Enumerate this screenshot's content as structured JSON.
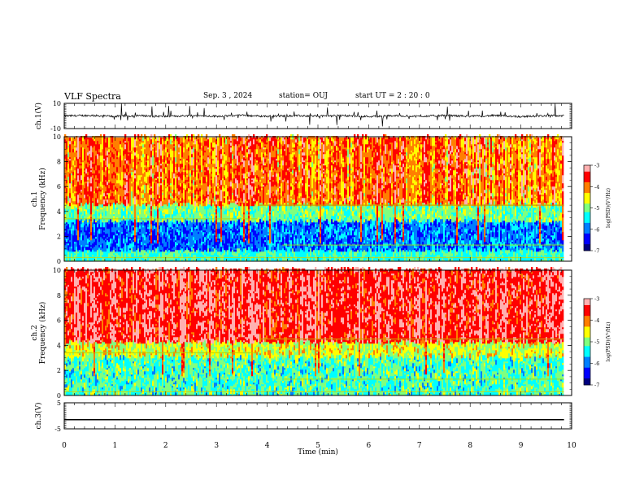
{
  "header": {
    "title": "VLF Spectra",
    "date": "Sep. 3 , 2024",
    "station": "station= OUJ",
    "start": "start UT =  2 : 20 : 0"
  },
  "colors": {
    "colormap": [
      "#00007f",
      "#0000ff",
      "#007fff",
      "#00ffff",
      "#7fff7f",
      "#ffff00",
      "#ff7f00",
      "#ff0000",
      "#ffb0b0"
    ],
    "trace": "#000000"
  },
  "chart_data": [
    {
      "type": "line",
      "name_panel": "ch1-waveform",
      "ylabel": "ch.1(V)",
      "ylim": [
        -10,
        10
      ],
      "yticks": [
        "10",
        "-10"
      ],
      "xlim": [
        0,
        10
      ],
      "x": [
        0,
        0.5,
        1,
        1.5,
        2,
        2.5,
        3,
        3.5,
        4,
        4.5,
        5,
        5.5,
        6,
        6.5,
        7,
        7.5,
        8,
        8.5,
        9,
        9.5,
        9.85
      ],
      "y": [
        0,
        0.4,
        -0.3,
        0.2,
        -0.4,
        0.3,
        -0.2,
        0.5,
        -0.3,
        0.2,
        -0.1,
        0.3,
        -0.4,
        0.2,
        -0.3,
        0.4,
        -0.2,
        0.3,
        -0.5,
        0.2,
        0.1
      ]
    },
    {
      "type": "heatmap",
      "name_panel": "ch1-spectrogram",
      "ylabel": "ch.1\nFrequency (kHz)",
      "ylim": [
        0,
        10
      ],
      "yticks": [
        "0",
        "2",
        "4",
        "6",
        "8",
        "10"
      ],
      "xlim": [
        0,
        10
      ],
      "data_end_min": 9.85,
      "colorbar": {
        "label": "log(PSD)(V²/Hz)",
        "range": [
          -7,
          -3
        ],
        "ticks": [
          "-3",
          "-4",
          "-5",
          "-6",
          "-7"
        ]
      },
      "low_band_top_khz": 4.5,
      "tone_line_khz": 4.5,
      "tone_line_start_min": 3.85
    },
    {
      "type": "heatmap",
      "name_panel": "ch2-spectrogram",
      "ylabel": "ch.2\nFrequency (kHz)",
      "ylim": [
        0,
        10
      ],
      "yticks": [
        "0",
        "2",
        "4",
        "6",
        "8",
        "10"
      ],
      "xlim": [
        0,
        10
      ],
      "data_end_min": 9.85,
      "colorbar": {
        "label": "log(PSD)(V²/Hz)",
        "range": [
          -7,
          -3
        ],
        "ticks": [
          "-3",
          "-4",
          "-5",
          "-6",
          "-7"
        ]
      },
      "low_band_top_khz": 4.2,
      "tone_line_khz": 4.5,
      "tone_line_start_min": 3.85
    },
    {
      "type": "line",
      "name_panel": "ch3-waveform",
      "ylabel": "ch.3(V)",
      "ylim": [
        -5,
        5
      ],
      "yticks": [
        "5",
        "-5"
      ],
      "xlim": [
        0,
        10
      ],
      "x": [
        0,
        9.85
      ],
      "y": [
        -1.5,
        -1.5
      ]
    }
  ],
  "xaxis": {
    "label": "Time (min)",
    "ticks": [
      "0",
      "1",
      "2",
      "3",
      "4",
      "5",
      "6",
      "7",
      "8",
      "9",
      "10"
    ]
  }
}
